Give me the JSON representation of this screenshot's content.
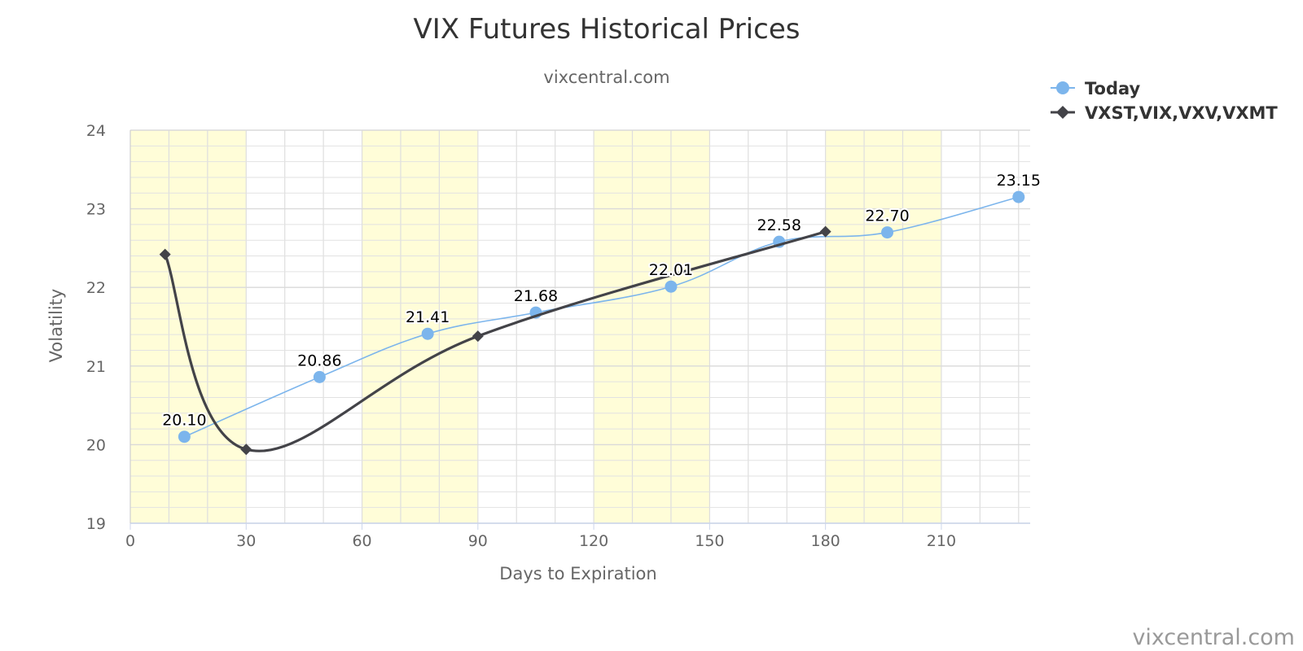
{
  "chart_data": {
    "type": "line",
    "title": "VIX Futures Historical Prices",
    "subtitle": "vixcentral.com",
    "credit": "vixcentral.com",
    "xlabel": "Days to Expiration",
    "ylabel": "Volatility",
    "xlim": [
      0,
      233
    ],
    "ylim": [
      19,
      24
    ],
    "x_ticks": [
      "0",
      "30",
      "60",
      "90",
      "120",
      "150",
      "180",
      "210"
    ],
    "y_ticks": [
      "19",
      "20",
      "21",
      "22",
      "23",
      "24"
    ],
    "x_bands": [
      [
        0,
        30
      ],
      [
        60,
        90
      ],
      [
        120,
        150
      ],
      [
        180,
        210
      ]
    ],
    "band_color": "#fffdd8",
    "grid": true,
    "legend_position": "top-right",
    "series": [
      {
        "name": "Today",
        "color": "#7cb5ec",
        "marker": "circle",
        "x": [
          14,
          49,
          77,
          105,
          140,
          168,
          196,
          230
        ],
        "values": [
          20.1,
          20.86,
          21.41,
          21.68,
          22.01,
          22.58,
          22.7,
          23.15
        ],
        "labels": [
          "20.10",
          "20.86",
          "21.41",
          "21.68",
          "22.01",
          "22.58",
          "22.70",
          "23.15"
        ]
      },
      {
        "name": "VXST,VIX,VXV,VXMT",
        "color": "#434348",
        "marker": "diamond",
        "x": [
          9,
          30,
          90,
          180
        ],
        "values": [
          22.42,
          19.94,
          21.38,
          22.71
        ]
      }
    ]
  }
}
